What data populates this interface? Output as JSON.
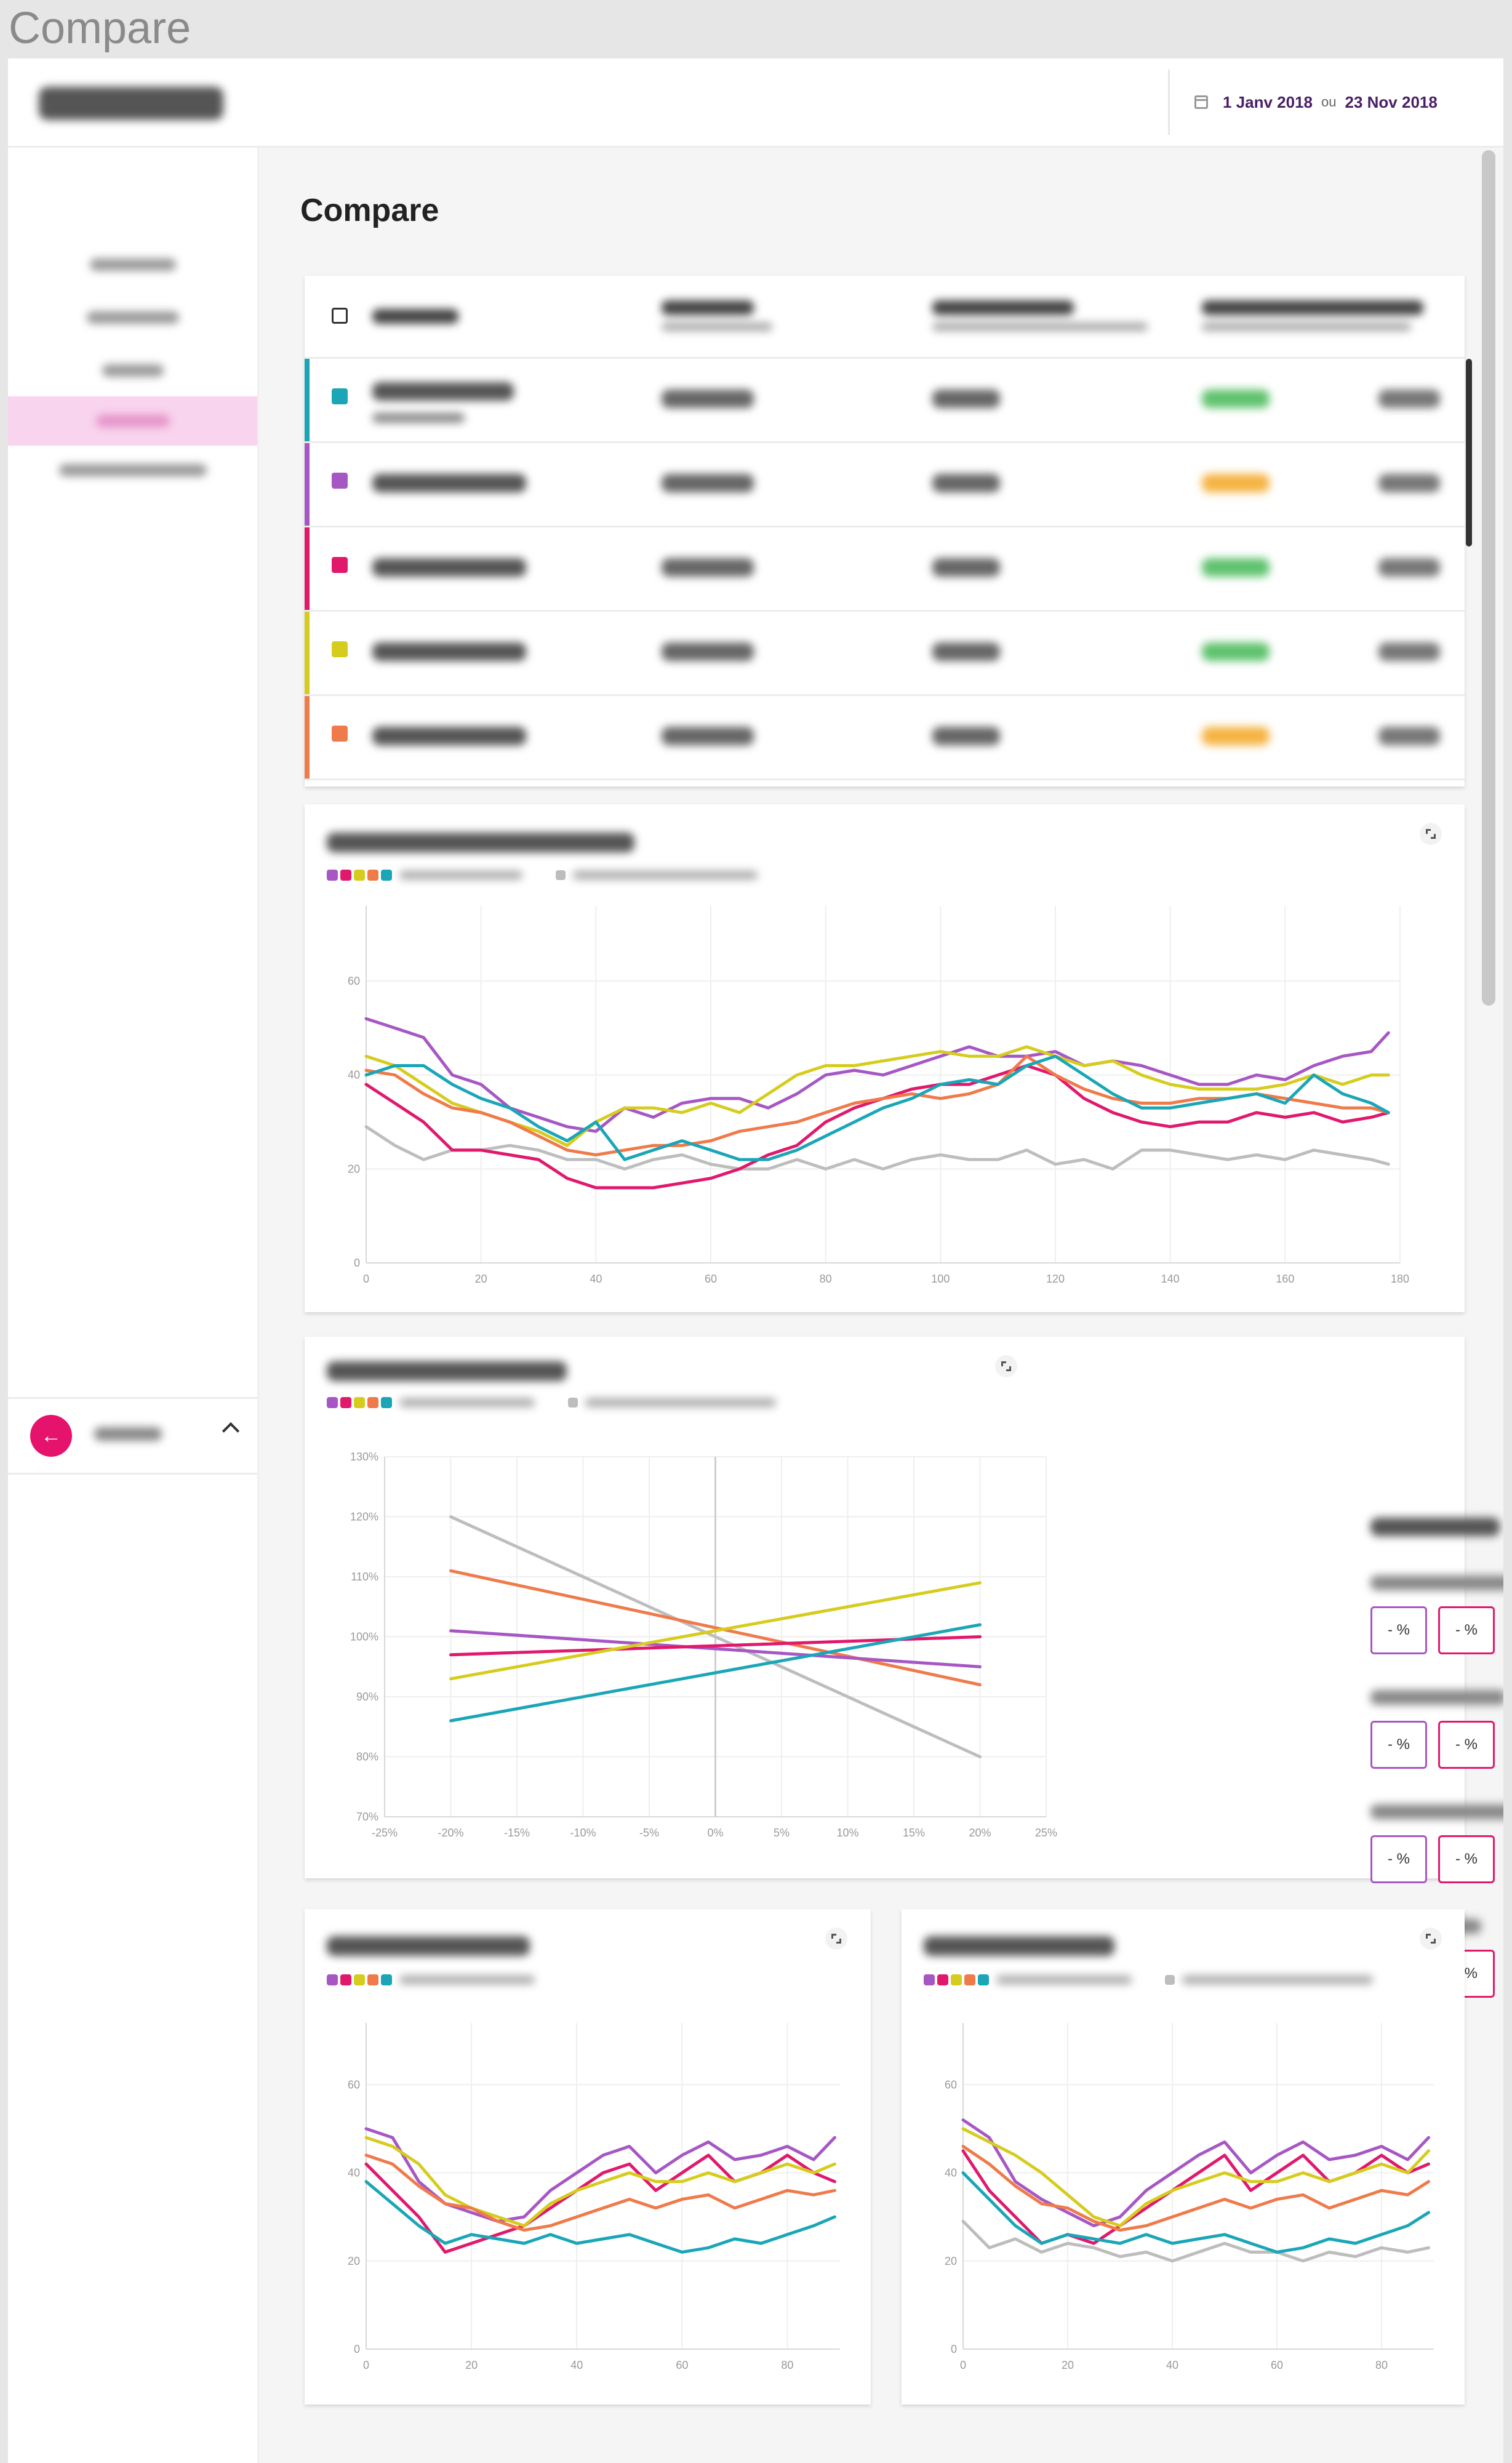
{
  "window": {
    "title": "Compare"
  },
  "header": {
    "date_from": "1 Janv 2018",
    "date_separator": "ou",
    "date_to": "23 Nov 2018"
  },
  "page": {
    "title": "Compare"
  },
  "sidebar": {
    "active_index": 3,
    "item_count": 5
  },
  "colors": {
    "teal": "#1aa6b7",
    "purple": "#a757c4",
    "pink": "#e0196d",
    "yellow": "#d6cc1e",
    "orange": "#ef7a4a",
    "gray": "#bdbdbd",
    "active_nav": "#f9d4ee"
  },
  "strategies": [
    {
      "color": "#1aa6b7",
      "perf_color": "#5fc26d"
    },
    {
      "color": "#a757c4",
      "perf_color": "#f5b342"
    },
    {
      "color": "#e0196d",
      "perf_color": "#5fc26d"
    },
    {
      "color": "#d6cc1e",
      "perf_color": "#5fc26d"
    },
    {
      "color": "#ef7a4a",
      "perf_color": "#f5b342"
    }
  ],
  "key_figures": {
    "box_text": "- %",
    "group_count": 4
  },
  "charts": [
    {
      "id": "performance-comparison",
      "chart_data": {
        "type": "line",
        "x": [
          0,
          5,
          10,
          15,
          20,
          25,
          30,
          35,
          40,
          45,
          50,
          55,
          60,
          65,
          70,
          75,
          80,
          85,
          90,
          95,
          100,
          105,
          110,
          115,
          120,
          125,
          130,
          135,
          140,
          145,
          150,
          155,
          160,
          165,
          170,
          175,
          178
        ],
        "xticks": [
          "0",
          "20",
          "40",
          "60",
          "80",
          "100",
          "120",
          "140",
          "160",
          "180"
        ],
        "xtick_values": [
          0,
          20,
          40,
          60,
          80,
          100,
          120,
          140,
          160,
          180
        ],
        "yticks": [
          "0",
          "20",
          "40",
          "60"
        ],
        "ytick_values": [
          0,
          20,
          40,
          60
        ],
        "xlim": [
          0,
          180
        ],
        "ylim": [
          0,
          76
        ],
        "grid": true,
        "series": [
          {
            "color": "#a757c4",
            "values": [
              52,
              50,
              48,
              40,
              38,
              33,
              31,
              29,
              28,
              33,
              31,
              34,
              35,
              35,
              33,
              36,
              40,
              41,
              40,
              42,
              44,
              46,
              44,
              44,
              45,
              42,
              43,
              42,
              40,
              38,
              38,
              40,
              39,
              42,
              44,
              45,
              49
            ]
          },
          {
            "color": "#e0196d",
            "values": [
              38,
              34,
              30,
              24,
              24,
              23,
              22,
              18,
              16,
              16,
              16,
              17,
              18,
              20,
              23,
              25,
              30,
              33,
              35,
              37,
              38,
              38,
              40,
              42,
              40,
              35,
              32,
              30,
              29,
              30,
              30,
              32,
              31,
              32,
              30,
              31,
              32
            ]
          },
          {
            "color": "#d6cc1e",
            "values": [
              44,
              42,
              38,
              34,
              32,
              30,
              28,
              25,
              30,
              33,
              33,
              32,
              34,
              32,
              36,
              40,
              42,
              42,
              43,
              44,
              45,
              44,
              44,
              46,
              44,
              42,
              43,
              40,
              38,
              37,
              37,
              37,
              38,
              40,
              38,
              40,
              40
            ]
          },
          {
            "color": "#ef7a4a",
            "values": [
              41,
              40,
              36,
              33,
              32,
              30,
              27,
              24,
              23,
              24,
              25,
              25,
              26,
              28,
              29,
              30,
              32,
              34,
              35,
              36,
              35,
              36,
              38,
              44,
              40,
              37,
              35,
              34,
              34,
              35,
              35,
              36,
              35,
              34,
              33,
              33,
              32
            ]
          },
          {
            "color": "#1aa6b7",
            "values": [
              40,
              42,
              42,
              38,
              35,
              33,
              29,
              26,
              30,
              22,
              24,
              26,
              24,
              22,
              22,
              24,
              27,
              30,
              33,
              35,
              38,
              39,
              38,
              42,
              44,
              40,
              36,
              33,
              33,
              34,
              35,
              36,
              34,
              40,
              36,
              34,
              32
            ]
          },
          {
            "color": "#bdbdbd",
            "values": [
              29,
              25,
              22,
              24,
              24,
              25,
              24,
              22,
              22,
              20,
              22,
              23,
              21,
              20,
              20,
              22,
              20,
              22,
              20,
              22,
              23,
              22,
              22,
              24,
              21,
              22,
              20,
              24,
              24,
              23,
              22,
              23,
              22,
              24,
              23,
              22,
              21
            ]
          }
        ]
      }
    },
    {
      "id": "sensitivity-analysis",
      "chart_data": {
        "type": "line",
        "x": [
          -20,
          20
        ],
        "xticks": [
          "-25%",
          "-20%",
          "-15%",
          "-10%",
          "-5%",
          "0%",
          "5%",
          "10%",
          "15%",
          "20%",
          "25%"
        ],
        "xtick_values": [
          -25,
          -20,
          -15,
          -10,
          -5,
          0,
          5,
          10,
          15,
          20,
          25
        ],
        "yticks": [
          "70%",
          "80%",
          "90%",
          "100%",
          "110%",
          "120%",
          "130%"
        ],
        "ytick_values": [
          70,
          80,
          90,
          100,
          110,
          120,
          130
        ],
        "xlim": [
          -25,
          25
        ],
        "ylim": [
          70,
          130
        ],
        "grid": true,
        "series": [
          {
            "color": "#bdbdbd",
            "values": [
              120,
              80
            ]
          },
          {
            "color": "#ef7a4a",
            "values": [
              111,
              92
            ]
          },
          {
            "color": "#a757c4",
            "values": [
              101,
              95
            ]
          },
          {
            "color": "#e0196d",
            "values": [
              97,
              100
            ]
          },
          {
            "color": "#d6cc1e",
            "values": [
              93,
              109
            ]
          },
          {
            "color": "#1aa6b7",
            "values": [
              86,
              102
            ]
          }
        ]
      }
    },
    {
      "id": "strategy-overlay",
      "chart_data": {
        "type": "line",
        "x": [
          0,
          5,
          10,
          15,
          20,
          25,
          30,
          35,
          40,
          45,
          50,
          55,
          60,
          65,
          70,
          75,
          80,
          85,
          89
        ],
        "xticks": [
          "0",
          "20",
          "40",
          "60",
          "80"
        ],
        "xtick_values": [
          0,
          20,
          40,
          60,
          80
        ],
        "yticks": [
          "0",
          "20",
          "40",
          "60"
        ],
        "ytick_values": [
          0,
          20,
          40,
          60
        ],
        "xlim": [
          0,
          90
        ],
        "ylim": [
          0,
          74
        ],
        "grid": true,
        "series": [
          {
            "color": "#a757c4",
            "values": [
              50,
              48,
              38,
              33,
              31,
              29,
              30,
              36,
              40,
              44,
              46,
              40,
              44,
              47,
              43,
              44,
              46,
              43,
              48
            ]
          },
          {
            "color": "#e0196d",
            "values": [
              42,
              36,
              30,
              22,
              24,
              26,
              28,
              32,
              36,
              40,
              42,
              36,
              40,
              44,
              38,
              40,
              44,
              40,
              38
            ]
          },
          {
            "color": "#d6cc1e",
            "values": [
              48,
              46,
              42,
              35,
              32,
              30,
              28,
              33,
              36,
              38,
              40,
              38,
              38,
              40,
              38,
              40,
              42,
              40,
              42
            ]
          },
          {
            "color": "#ef7a4a",
            "values": [
              44,
              42,
              37,
              33,
              32,
              29,
              27,
              28,
              30,
              32,
              34,
              32,
              34,
              35,
              32,
              34,
              36,
              35,
              36
            ]
          },
          {
            "color": "#1aa6b7",
            "values": [
              38,
              33,
              28,
              24,
              26,
              25,
              24,
              26,
              24,
              25,
              26,
              24,
              22,
              23,
              25,
              24,
              26,
              28,
              30
            ]
          }
        ]
      }
    },
    {
      "id": "spot-vs-spread",
      "chart_data": {
        "type": "line",
        "x": [
          0,
          5,
          10,
          15,
          20,
          25,
          30,
          35,
          40,
          45,
          50,
          55,
          60,
          65,
          70,
          75,
          80,
          85,
          89
        ],
        "xticks": [
          "0",
          "20",
          "40",
          "60",
          "80"
        ],
        "xtick_values": [
          0,
          20,
          40,
          60,
          80
        ],
        "yticks": [
          "0",
          "20",
          "40",
          "60"
        ],
        "ytick_values": [
          0,
          20,
          40,
          60
        ],
        "xlim": [
          0,
          90
        ],
        "ylim": [
          0,
          74
        ],
        "grid": true,
        "series": [
          {
            "color": "#a757c4",
            "values": [
              52,
              48,
              38,
              34,
              31,
              28,
              30,
              36,
              40,
              44,
              47,
              40,
              44,
              47,
              43,
              44,
              46,
              43,
              48
            ]
          },
          {
            "color": "#e0196d",
            "values": [
              45,
              36,
              30,
              24,
              26,
              24,
              28,
              32,
              36,
              40,
              44,
              36,
              40,
              44,
              38,
              40,
              44,
              40,
              42
            ]
          },
          {
            "color": "#d6cc1e",
            "values": [
              50,
              47,
              44,
              40,
              35,
              30,
              28,
              33,
              36,
              38,
              40,
              38,
              38,
              40,
              38,
              40,
              42,
              40,
              45
            ]
          },
          {
            "color": "#ef7a4a",
            "values": [
              46,
              42,
              37,
              33,
              32,
              29,
              27,
              28,
              30,
              32,
              34,
              32,
              34,
              35,
              32,
              34,
              36,
              35,
              38
            ]
          },
          {
            "color": "#1aa6b7",
            "values": [
              40,
              34,
              28,
              24,
              26,
              25,
              24,
              26,
              24,
              25,
              26,
              24,
              22,
              23,
              25,
              24,
              26,
              28,
              31
            ]
          },
          {
            "color": "#bdbdbd",
            "values": [
              29,
              23,
              25,
              22,
              24,
              23,
              21,
              22,
              20,
              22,
              24,
              22,
              22,
              20,
              22,
              21,
              23,
              22,
              23
            ]
          }
        ]
      }
    }
  ]
}
